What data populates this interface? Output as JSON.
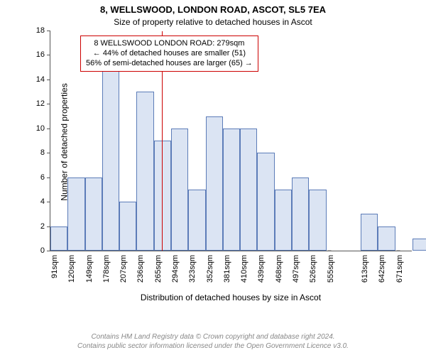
{
  "title": "8, WELLSWOOD, LONDON ROAD, ASCOT, SL5 7EA",
  "subtitle": "Size of property relative to detached houses in Ascot",
  "ylabel": "Number of detached properties",
  "xlabel": "Distribution of detached houses by size in Ascot",
  "chart": {
    "type": "histogram",
    "ylim": [
      0,
      18
    ],
    "ytick_step": 2,
    "x_start": 91,
    "x_step": 29,
    "x_count": 21,
    "x_unit": "sqm",
    "x_skip_index": 17,
    "values": [
      2,
      6,
      6,
      15,
      4,
      13,
      9,
      10,
      5,
      11,
      10,
      10,
      8,
      5,
      6,
      5,
      0,
      0,
      3,
      2,
      0,
      1
    ],
    "bar_fill": "#dbe4f3",
    "bar_stroke": "#5c7cb8",
    "background": "#ffffff",
    "axis_color": "#555555",
    "ref_line_x": 279,
    "ref_line_color": "#cc0000"
  },
  "annotation": {
    "lines": [
      "8 WELLSWOOD LONDON ROAD: 279sqm",
      "← 44% of detached houses are smaller (51)",
      "56% of semi-detached houses are larger (65) →"
    ],
    "border_color": "#cc0000"
  },
  "footer": {
    "line1": "Contains HM Land Registry data © Crown copyright and database right 2024.",
    "line2": "Contains public sector information licensed under the Open Government Licence v3.0."
  }
}
